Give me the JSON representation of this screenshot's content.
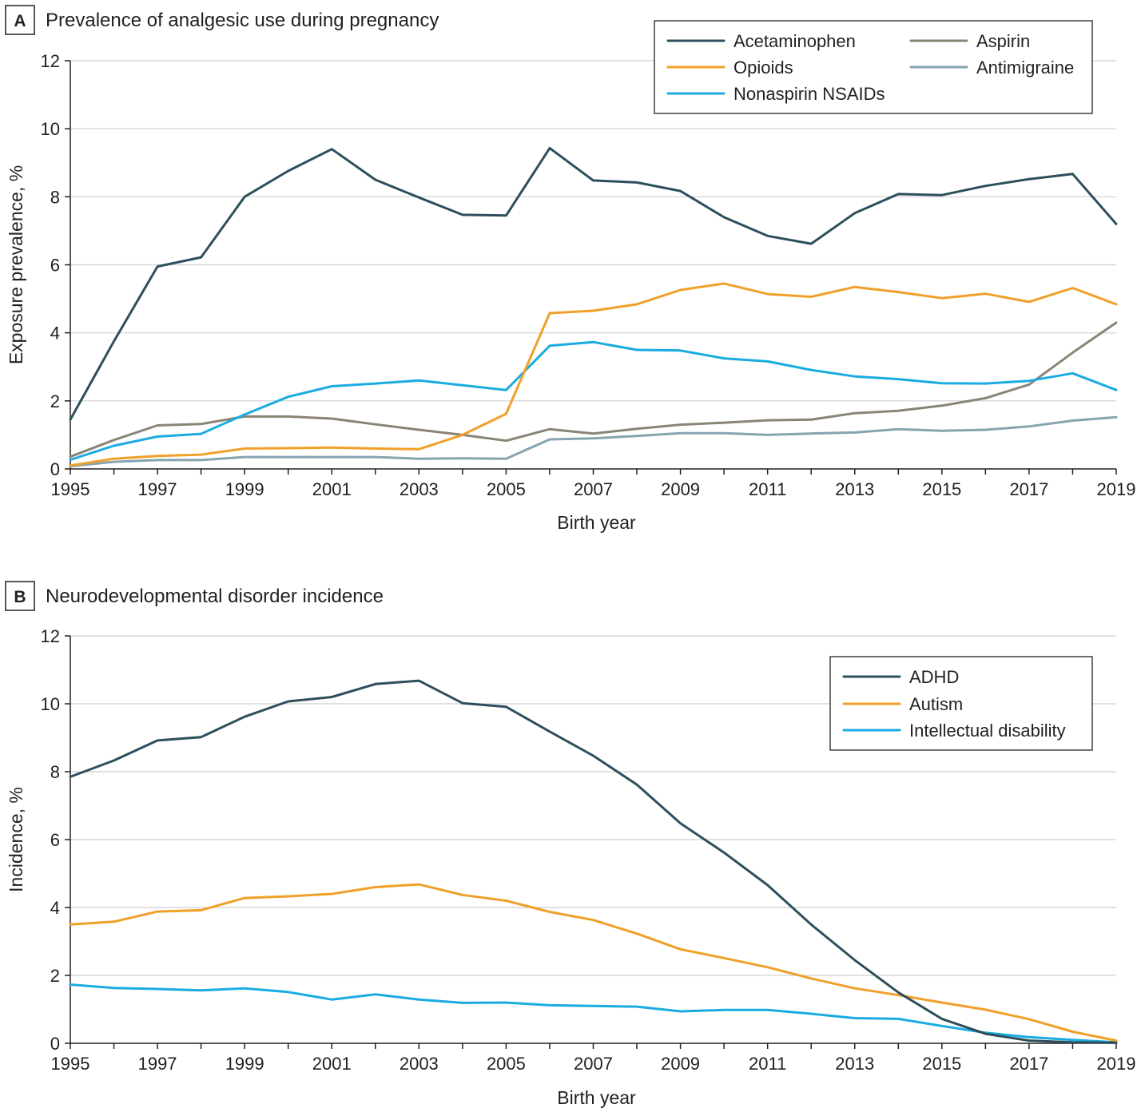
{
  "chart_data": [
    {
      "type": "line",
      "panel_letter": "A",
      "title": "Prevalence of analgesic use during pregnancy",
      "xlabel": "Birth year",
      "ylabel": "Exposure prevalence, %",
      "xlim": [
        1995,
        2019
      ],
      "ylim": [
        0,
        12
      ],
      "x_ticks": [
        "1995",
        "1997",
        "1999",
        "2001",
        "2003",
        "2005",
        "2007",
        "2009",
        "2011",
        "2013",
        "2015",
        "2017",
        "2019"
      ],
      "y_ticks": [
        "0",
        "2",
        "4",
        "6",
        "8",
        "10",
        "12"
      ],
      "grid": true,
      "legend_position": "top-right",
      "x": [
        1995,
        1996,
        1997,
        1998,
        1999,
        2000,
        2001,
        2002,
        2003,
        2004,
        2005,
        2006,
        2007,
        2008,
        2009,
        2010,
        2011,
        2012,
        2013,
        2014,
        2015,
        2016,
        2017,
        2018,
        2019
      ],
      "series": [
        {
          "name": "Acetaminophen",
          "color": "#2d4f5c",
          "values": [
            1.45,
            3.75,
            5.95,
            6.22,
            8.0,
            8.76,
            9.4,
            8.5,
            7.98,
            7.47,
            7.45,
            9.43,
            8.48,
            8.42,
            8.17,
            7.4,
            6.85,
            6.62,
            7.52,
            8.08,
            8.05,
            8.32,
            8.52,
            8.67,
            7.2
          ]
        },
        {
          "name": "Opioids",
          "color": "#f0a028",
          "values": [
            0.1,
            0.3,
            0.38,
            0.42,
            0.6,
            0.61,
            0.63,
            0.6,
            0.58,
            1.0,
            1.62,
            4.58,
            4.65,
            4.84,
            5.26,
            5.45,
            5.14,
            5.06,
            5.35,
            5.2,
            5.02,
            5.15,
            4.91,
            5.32,
            4.84
          ]
        },
        {
          "name": "Nonaspirin NSAIDs",
          "color": "#1aace0",
          "values": [
            0.27,
            0.68,
            0.95,
            1.03,
            1.6,
            2.12,
            2.43,
            2.51,
            2.6,
            2.46,
            2.32,
            3.62,
            3.73,
            3.5,
            3.48,
            3.25,
            3.16,
            2.91,
            2.72,
            2.64,
            2.52,
            2.51,
            2.59,
            2.81,
            2.32
          ]
        },
        {
          "name": "Aspirin",
          "color": "#8a8475",
          "values": [
            0.36,
            0.85,
            1.28,
            1.32,
            1.54,
            1.54,
            1.48,
            1.31,
            1.15,
            1.0,
            0.83,
            1.17,
            1.04,
            1.18,
            1.3,
            1.36,
            1.43,
            1.45,
            1.64,
            1.71,
            1.86,
            2.08,
            2.48,
            3.42,
            4.3
          ]
        },
        {
          "name": "Antimigraine",
          "color": "#86a4b0",
          "values": [
            0.08,
            0.21,
            0.26,
            0.26,
            0.35,
            0.35,
            0.35,
            0.35,
            0.3,
            0.31,
            0.3,
            0.87,
            0.9,
            0.97,
            1.05,
            1.05,
            1.0,
            1.04,
            1.07,
            1.17,
            1.12,
            1.15,
            1.25,
            1.42,
            1.52
          ]
        }
      ]
    },
    {
      "type": "line",
      "panel_letter": "B",
      "title": "Neurodevelopmental disorder incidence",
      "xlabel": "Birth year",
      "ylabel": "Incidence, %",
      "xlim": [
        1995,
        2019
      ],
      "ylim": [
        0,
        12
      ],
      "x_ticks": [
        "1995",
        "1997",
        "1999",
        "2001",
        "2003",
        "2005",
        "2007",
        "2009",
        "2011",
        "2013",
        "2015",
        "2017",
        "2019"
      ],
      "y_ticks": [
        "0",
        "2",
        "4",
        "6",
        "8",
        "10",
        "12"
      ],
      "grid": true,
      "legend_position": "top-right",
      "x": [
        1995,
        1996,
        1997,
        1998,
        1999,
        2000,
        2001,
        2002,
        2003,
        2004,
        2005,
        2006,
        2007,
        2008,
        2009,
        2010,
        2011,
        2012,
        2013,
        2014,
        2015,
        2016,
        2017,
        2018,
        2019
      ],
      "series": [
        {
          "name": "ADHD",
          "color": "#2d4f5c",
          "values": [
            7.85,
            8.33,
            8.92,
            9.02,
            9.62,
            10.07,
            10.2,
            10.58,
            10.68,
            10.02,
            9.91,
            9.18,
            8.47,
            7.62,
            6.48,
            5.62,
            4.66,
            3.5,
            2.45,
            1.5,
            0.72,
            0.28,
            0.08,
            0.03,
            0.02
          ]
        },
        {
          "name": "Autism",
          "color": "#f0a028",
          "values": [
            3.5,
            3.58,
            3.88,
            3.92,
            4.28,
            4.33,
            4.4,
            4.6,
            4.68,
            4.37,
            4.2,
            3.87,
            3.63,
            3.23,
            2.77,
            2.51,
            2.24,
            1.91,
            1.62,
            1.42,
            1.2,
            0.99,
            0.71,
            0.34,
            0.08
          ]
        },
        {
          "name": "Intellectual disability",
          "color": "#1aace0",
          "values": [
            1.73,
            1.63,
            1.6,
            1.56,
            1.62,
            1.51,
            1.29,
            1.44,
            1.29,
            1.19,
            1.2,
            1.12,
            1.1,
            1.08,
            0.94,
            0.98,
            0.98,
            0.87,
            0.74,
            0.72,
            0.51,
            0.31,
            0.18,
            0.1,
            0.03
          ]
        }
      ]
    }
  ]
}
